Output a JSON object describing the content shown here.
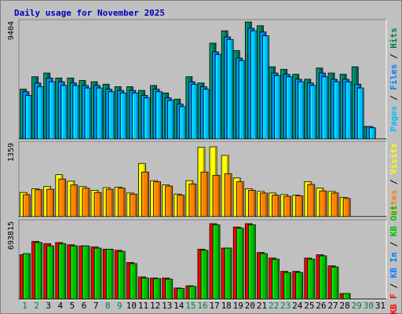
{
  "title": "Daily usage for November 2025",
  "panels": [
    {
      "ymax_label": "9404",
      "legend": [
        {
          "text": "Pages",
          "color": "#00c0ff"
        },
        {
          "text": " / ",
          "color": "#000000"
        },
        {
          "text": "Files",
          "color": "#0080ff"
        },
        {
          "text": " / ",
          "color": "#000000"
        },
        {
          "text": "Hits",
          "color": "#008040"
        }
      ]
    },
    {
      "ymax_label": "1359",
      "legend": [
        {
          "text": "Sites",
          "color": "#ff8000"
        },
        {
          "text": " / ",
          "color": "#000000"
        },
        {
          "text": "Visits",
          "color": "#ffff00"
        }
      ]
    },
    {
      "ymax_label": "693815",
      "legend": [
        {
          "text": "KB F",
          "color": "#ff0000"
        },
        {
          "text": " / ",
          "color": "#000000"
        },
        {
          "text": "KB In",
          "color": "#0080ff"
        },
        {
          "text": " / ",
          "color": "#000000"
        },
        {
          "text": "KB Out",
          "color": "#00c000"
        }
      ]
    }
  ],
  "chart_data": [
    {
      "type": "bar",
      "categories": [
        "1",
        "2",
        "3",
        "4",
        "5",
        "6",
        "7",
        "8",
        "9",
        "10",
        "11",
        "12",
        "13",
        "14",
        "15",
        "16",
        "17",
        "18",
        "19",
        "20",
        "21",
        "22",
        "23",
        "24",
        "25",
        "26",
        "27",
        "28",
        "29",
        "30",
        "31"
      ],
      "weekend_days": [
        "1",
        "2",
        "8",
        "9",
        "15",
        "16",
        "22",
        "23",
        "29",
        "30"
      ],
      "ylim": [
        0,
        9404
      ],
      "series": [
        {
          "name": "Hits",
          "color": "#008060",
          "values": [
            4000,
            5000,
            5300,
            4900,
            4900,
            4700,
            4600,
            4400,
            4200,
            4200,
            3900,
            4300,
            3700,
            3200,
            5000,
            4500,
            7700,
            8700,
            7100,
            9400,
            9100,
            5800,
            5600,
            5200,
            4800,
            5700,
            5300,
            5200,
            5800,
            1000,
            0
          ]
        },
        {
          "name": "Files",
          "color": "#0080ff",
          "values": [
            3800,
            4500,
            4900,
            4600,
            4500,
            4300,
            4300,
            4000,
            3900,
            3900,
            3500,
            4000,
            3300,
            2800,
            4600,
            4200,
            7000,
            8200,
            6500,
            8900,
            8600,
            5300,
            5200,
            4800,
            4500,
            5300,
            4800,
            4800,
            4400,
            1000,
            0
          ]
        },
        {
          "name": "Pages",
          "color": "#00c0ff",
          "values": [
            3500,
            4200,
            4600,
            4300,
            4300,
            4100,
            4100,
            3800,
            3700,
            3700,
            3300,
            3800,
            3100,
            2600,
            4400,
            4000,
            6800,
            8000,
            6300,
            8700,
            8300,
            5100,
            5000,
            4600,
            4300,
            5000,
            4600,
            4600,
            4100,
            900,
            0
          ]
        }
      ]
    },
    {
      "type": "bar",
      "categories": [
        "1",
        "2",
        "3",
        "4",
        "5",
        "6",
        "7",
        "8",
        "9",
        "10",
        "11",
        "12",
        "13",
        "14",
        "15",
        "16",
        "17",
        "18",
        "19",
        "20",
        "21",
        "22",
        "23",
        "24",
        "25",
        "26",
        "27",
        "28",
        "29",
        "30",
        "31"
      ],
      "ylim": [
        0,
        1359
      ],
      "series": [
        {
          "name": "Visits",
          "color": "#ffff00",
          "values": [
            450,
            520,
            560,
            780,
            660,
            560,
            490,
            540,
            550,
            440,
            990,
            670,
            590,
            420,
            670,
            1290,
            1300,
            1140,
            720,
            520,
            470,
            440,
            410,
            400,
            650,
            530,
            470,
            360,
            0,
            0,
            0
          ]
        },
        {
          "name": "Sites",
          "color": "#ff8000",
          "values": [
            410,
            500,
            510,
            700,
            590,
            530,
            450,
            510,
            530,
            420,
            830,
            650,
            570,
            400,
            610,
            830,
            770,
            800,
            650,
            490,
            440,
            400,
            380,
            390,
            600,
            480,
            440,
            340,
            0,
            0,
            0
          ]
        }
      ]
    },
    {
      "type": "bar",
      "categories": [
        "1",
        "2",
        "3",
        "4",
        "5",
        "6",
        "7",
        "8",
        "9",
        "10",
        "11",
        "12",
        "13",
        "14",
        "15",
        "16",
        "17",
        "18",
        "19",
        "20",
        "21",
        "22",
        "23",
        "24",
        "25",
        "26",
        "27",
        "28",
        "29",
        "30",
        "31"
      ],
      "ylim": [
        0,
        693815
      ],
      "series": [
        {
          "name": "KB F",
          "color": "#ff0000",
          "values": [
            400000,
            520000,
            500000,
            510000,
            490000,
            480000,
            470000,
            450000,
            440000,
            330000,
            200000,
            190000,
            190000,
            100000,
            120000,
            450000,
            680000,
            460000,
            650000,
            680000,
            420000,
            370000,
            250000,
            250000,
            370000,
            400000,
            300000,
            50000,
            0,
            0,
            0
          ]
        },
        {
          "name": "KB Out",
          "color": "#00c000",
          "values": [
            410000,
            510000,
            480000,
            500000,
            480000,
            480000,
            460000,
            450000,
            430000,
            320000,
            190000,
            185000,
            180000,
            95000,
            115000,
            440000,
            670000,
            460000,
            640000,
            670000,
            410000,
            360000,
            240000,
            240000,
            360000,
            390000,
            290000,
            50000,
            0,
            0,
            0
          ]
        }
      ]
    }
  ]
}
